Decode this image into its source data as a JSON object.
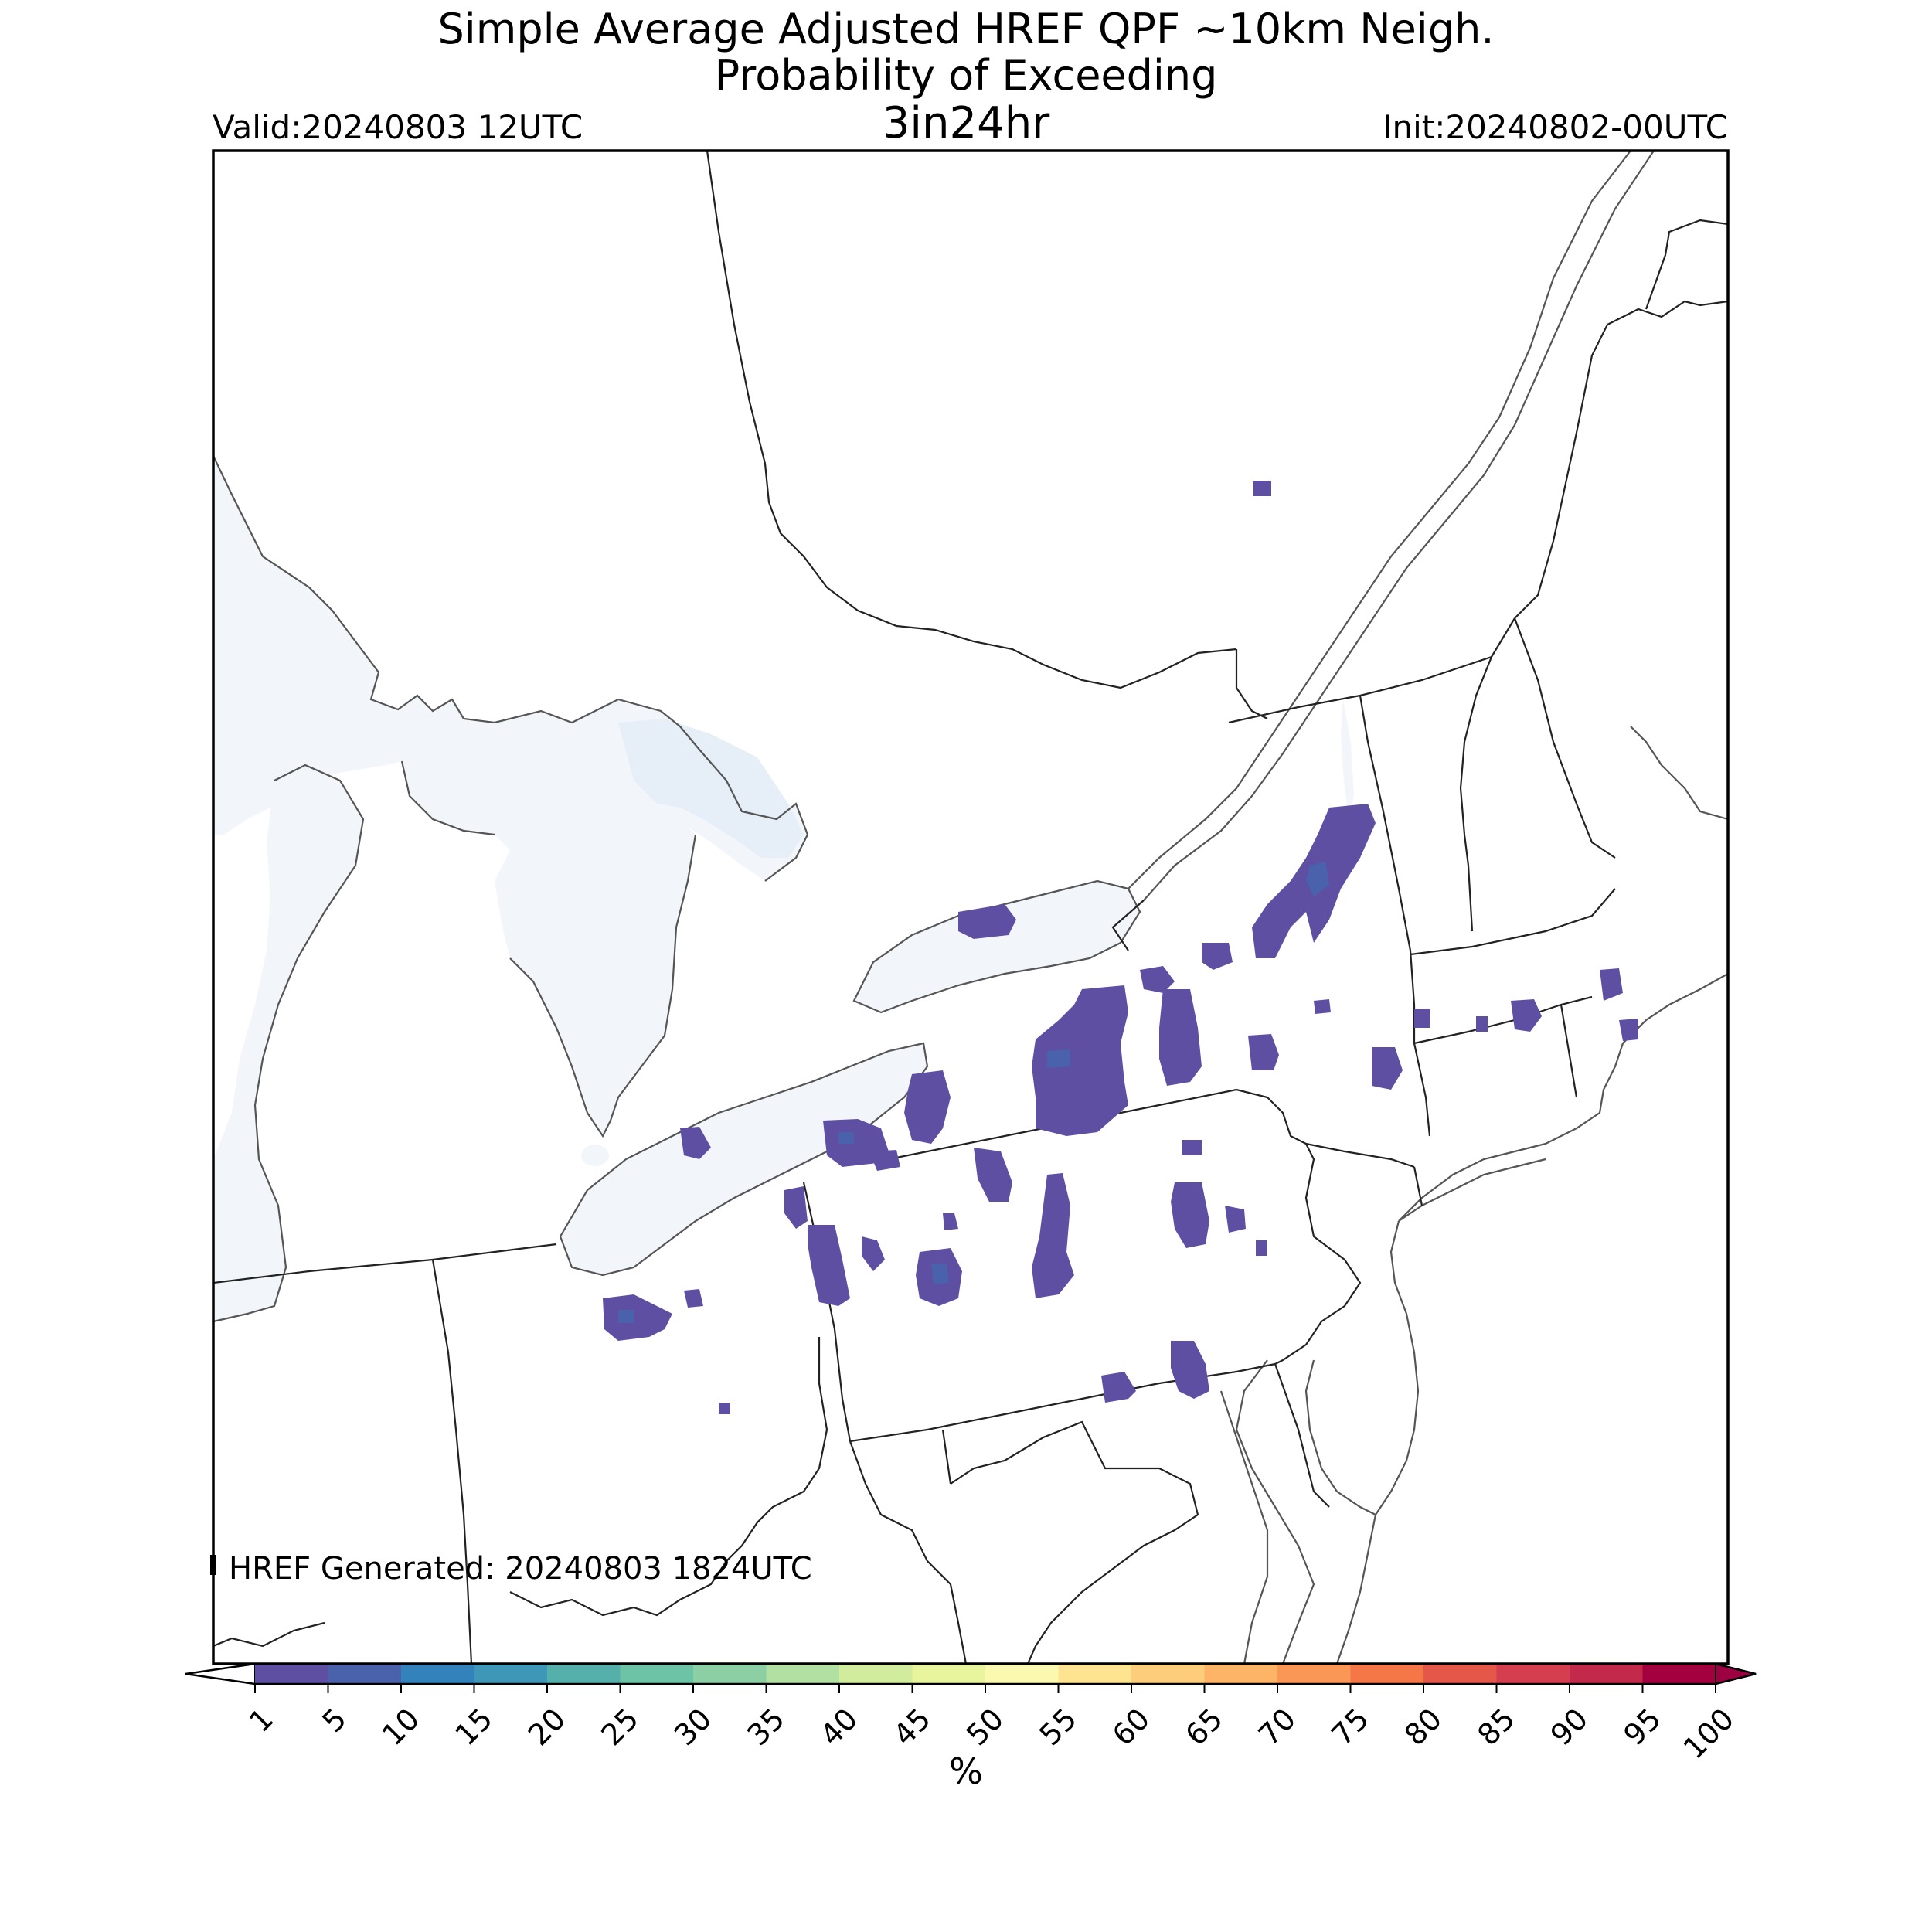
{
  "header": {
    "title_line1": "Simple Average Adjusted HREF QPF ~10km Neigh.",
    "title_line2": "Probability of Exceeding",
    "title_line3": "3in24hr",
    "valid": "Valid:20240803 12UTC",
    "init": "Init:20240802-00UTC"
  },
  "footer": {
    "generated": "HREF Generated: 20240803 1824UTC"
  },
  "colorbar": {
    "unit": "%",
    "ticks": [
      "1",
      "5",
      "10",
      "15",
      "20",
      "25",
      "30",
      "35",
      "40",
      "45",
      "50",
      "55",
      "60",
      "65",
      "70",
      "75",
      "80",
      "85",
      "90",
      "95",
      "100"
    ],
    "colors": [
      "#5e4fa2",
      "#4a62ab",
      "#3382bc",
      "#3f97b7",
      "#55b0ab",
      "#6cc3a5",
      "#8ccfa4",
      "#b2dfa2",
      "#d1ec9c",
      "#e8f59c",
      "#fbf8b0",
      "#fee391",
      "#fdcd7b",
      "#fdb466",
      "#fa9756",
      "#f57747",
      "#e55749",
      "#d53e4f",
      "#c3294a",
      "#a4003f"
    ],
    "under_color": "#ffffff",
    "over_color": "#9e0142"
  },
  "colors": {
    "lake_fill": "#f2f6fb",
    "lake_fill_dark": "#e6eef7",
    "prob_low": "#5e4fa2",
    "prob_mid": "#4a62ab"
  }
}
